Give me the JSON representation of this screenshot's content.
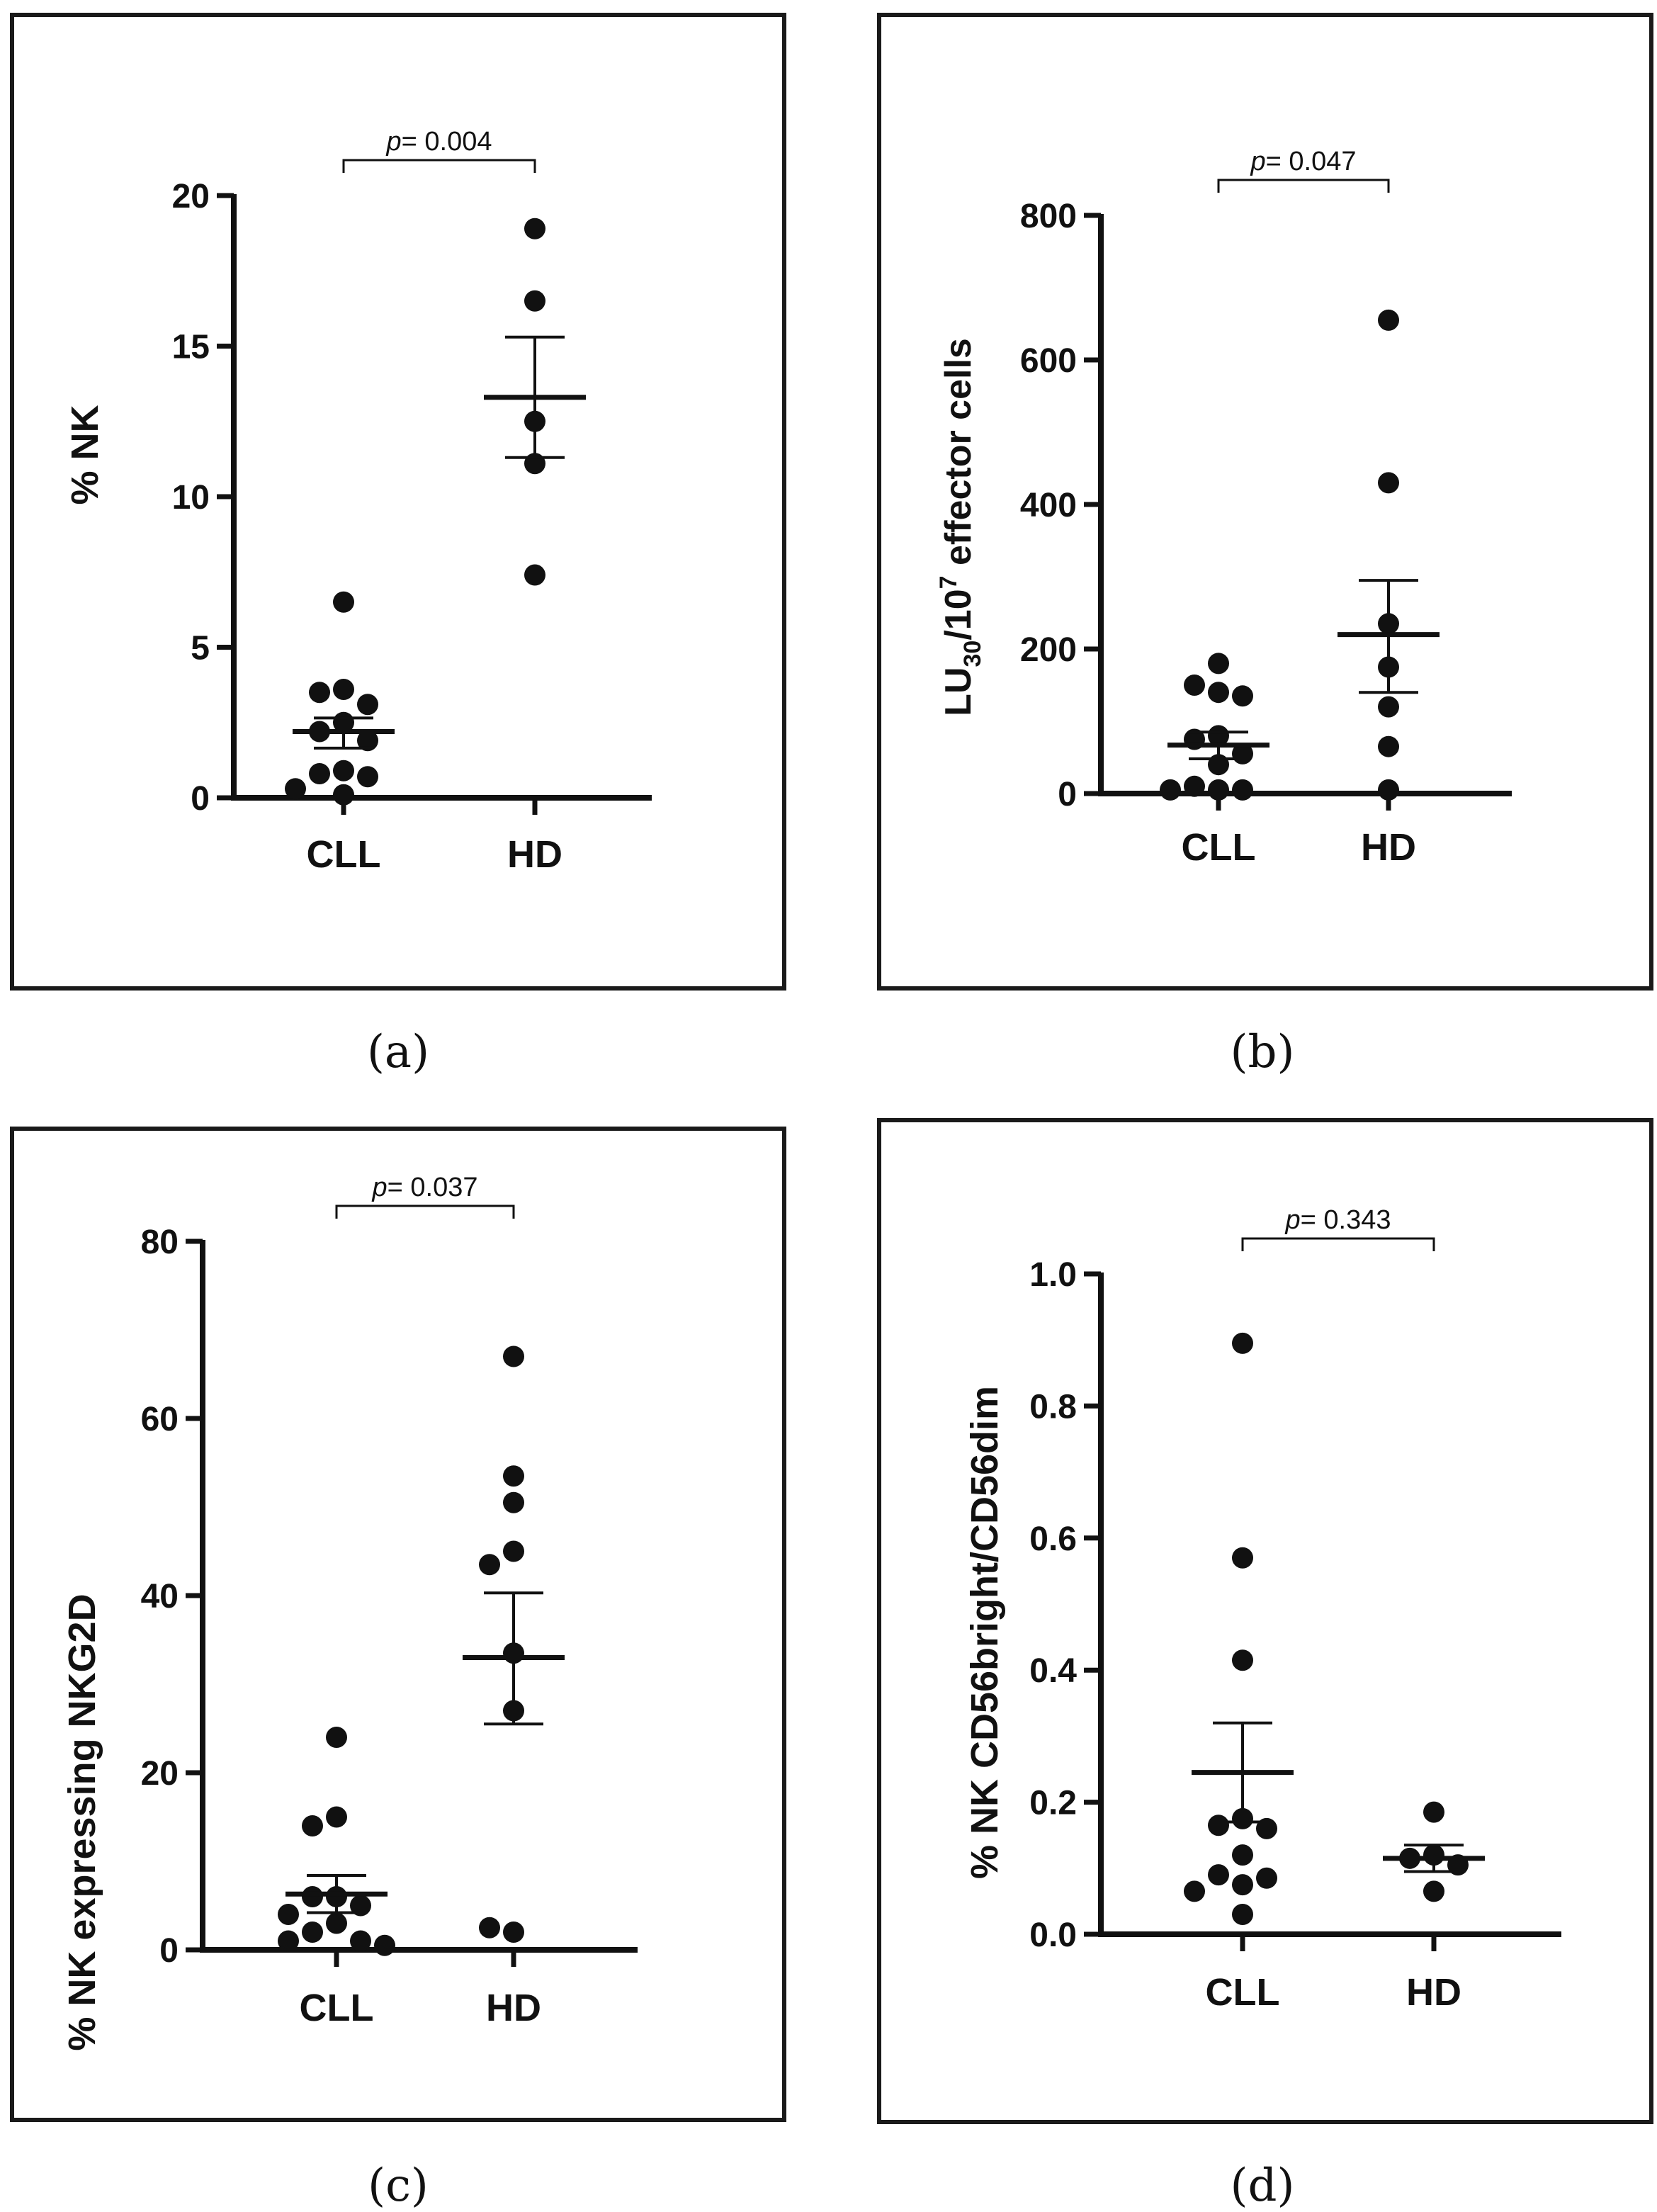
{
  "figure": {
    "colors": {
      "ink": "#111111",
      "frame": "#1a1a1a",
      "background": "#ffffff"
    }
  },
  "chart_data": [
    {
      "id": "a",
      "type": "scatter",
      "caption": "(a)",
      "categories": [
        "CLL",
        "HD"
      ],
      "ylabel": "% NK",
      "ylim": [
        0,
        20
      ],
      "yticks": [
        0,
        5,
        10,
        15,
        20
      ],
      "p_label": "p",
      "p_text": "= 0.004",
      "groups": [
        {
          "name": "CLL",
          "mean": 2.2,
          "sem_low": 1.65,
          "sem_high": 2.65,
          "points": [
            6.5,
            3.6,
            3.5,
            3.1,
            2.5,
            2.2,
            1.9,
            0.9,
            0.8,
            0.7,
            0.1,
            0.3
          ]
        },
        {
          "name": "HD",
          "mean": 13.3,
          "sem_low": 11.3,
          "sem_high": 15.3,
          "points": [
            18.9,
            16.5,
            12.5,
            11.1,
            7.4
          ]
        }
      ]
    },
    {
      "id": "b",
      "type": "scatter",
      "caption": "(b)",
      "categories": [
        "CLL",
        "HD"
      ],
      "ylabel_main": "LU",
      "ylabel_sub": "30",
      "ylabel_mid": "/10",
      "ylabel_sup": "7",
      "ylabel_tail": " effector cells",
      "ylim": [
        0,
        800
      ],
      "yticks": [
        0,
        200,
        400,
        600,
        800
      ],
      "p_label": "p",
      "p_text": "= 0.047",
      "groups": [
        {
          "name": "CLL",
          "mean": 67,
          "sem_low": 48,
          "sem_high": 85,
          "points": [
            180,
            150,
            140,
            135,
            80,
            75,
            55,
            40,
            10,
            5,
            5,
            5
          ]
        },
        {
          "name": "HD",
          "mean": 220,
          "sem_low": 140,
          "sem_high": 295,
          "points": [
            655,
            430,
            235,
            175,
            120,
            65,
            5
          ]
        }
      ]
    },
    {
      "id": "c",
      "type": "scatter",
      "caption": "(c)",
      "categories": [
        "CLL",
        "HD"
      ],
      "ylabel": "%  NK expressing NKG2D",
      "ylim": [
        0,
        80
      ],
      "yticks": [
        0,
        20,
        40,
        60,
        80
      ],
      "p_label": "p",
      "p_text": "= 0.037",
      "groups": [
        {
          "name": "CLL",
          "mean": 6.3,
          "sem_low": 4.2,
          "sem_high": 8.4,
          "points": [
            24,
            15,
            14,
            6,
            6,
            5,
            4,
            3,
            2,
            1,
            1,
            0.5
          ]
        },
        {
          "name": "HD",
          "mean": 33,
          "sem_low": 25.5,
          "sem_high": 40.3,
          "points": [
            67,
            53.5,
            50.5,
            45,
            43.5,
            33.5,
            27,
            2,
            2.5
          ]
        }
      ]
    },
    {
      "id": "d",
      "type": "scatter",
      "caption": "(d)",
      "categories": [
        "CLL",
        "HD"
      ],
      "ylabel": "% NK CD56bright/CD56dim",
      "ylim": [
        0,
        1.0
      ],
      "yticks": [
        "0.0",
        "0.2",
        "0.4",
        "0.6",
        "0.8",
        "1.0"
      ],
      "p_label": "p",
      "p_text": "= 0.343",
      "groups": [
        {
          "name": "CLL",
          "mean": 0.245,
          "sem_low": 0.17,
          "sem_high": 0.32,
          "points": [
            0.895,
            0.57,
            0.415,
            0.175,
            0.165,
            0.16,
            0.12,
            0.09,
            0.085,
            0.075,
            0.065,
            0.03
          ]
        },
        {
          "name": "HD",
          "mean": 0.115,
          "sem_low": 0.095,
          "sem_high": 0.135,
          "points": [
            0.185,
            0.12,
            0.115,
            0.105,
            0.065
          ]
        }
      ]
    }
  ]
}
